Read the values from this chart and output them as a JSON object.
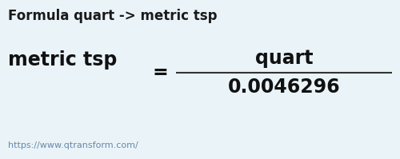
{
  "bg_color": "#eaf4f8",
  "title": "Formula quart -> metric tsp",
  "title_fontsize": 12,
  "title_color": "#1a1a1a",
  "unit_from": "quart",
  "unit_to": "metric tsp",
  "value": "0.0046296",
  "equals_sign": "=",
  "url": "https://www.qtransform.com/",
  "unit_from_fontsize": 17,
  "unit_to_fontsize": 17,
  "value_fontsize": 17,
  "url_fontsize": 8,
  "line_color": "#333333",
  "text_color": "#111111",
  "url_color": "#6688aa"
}
